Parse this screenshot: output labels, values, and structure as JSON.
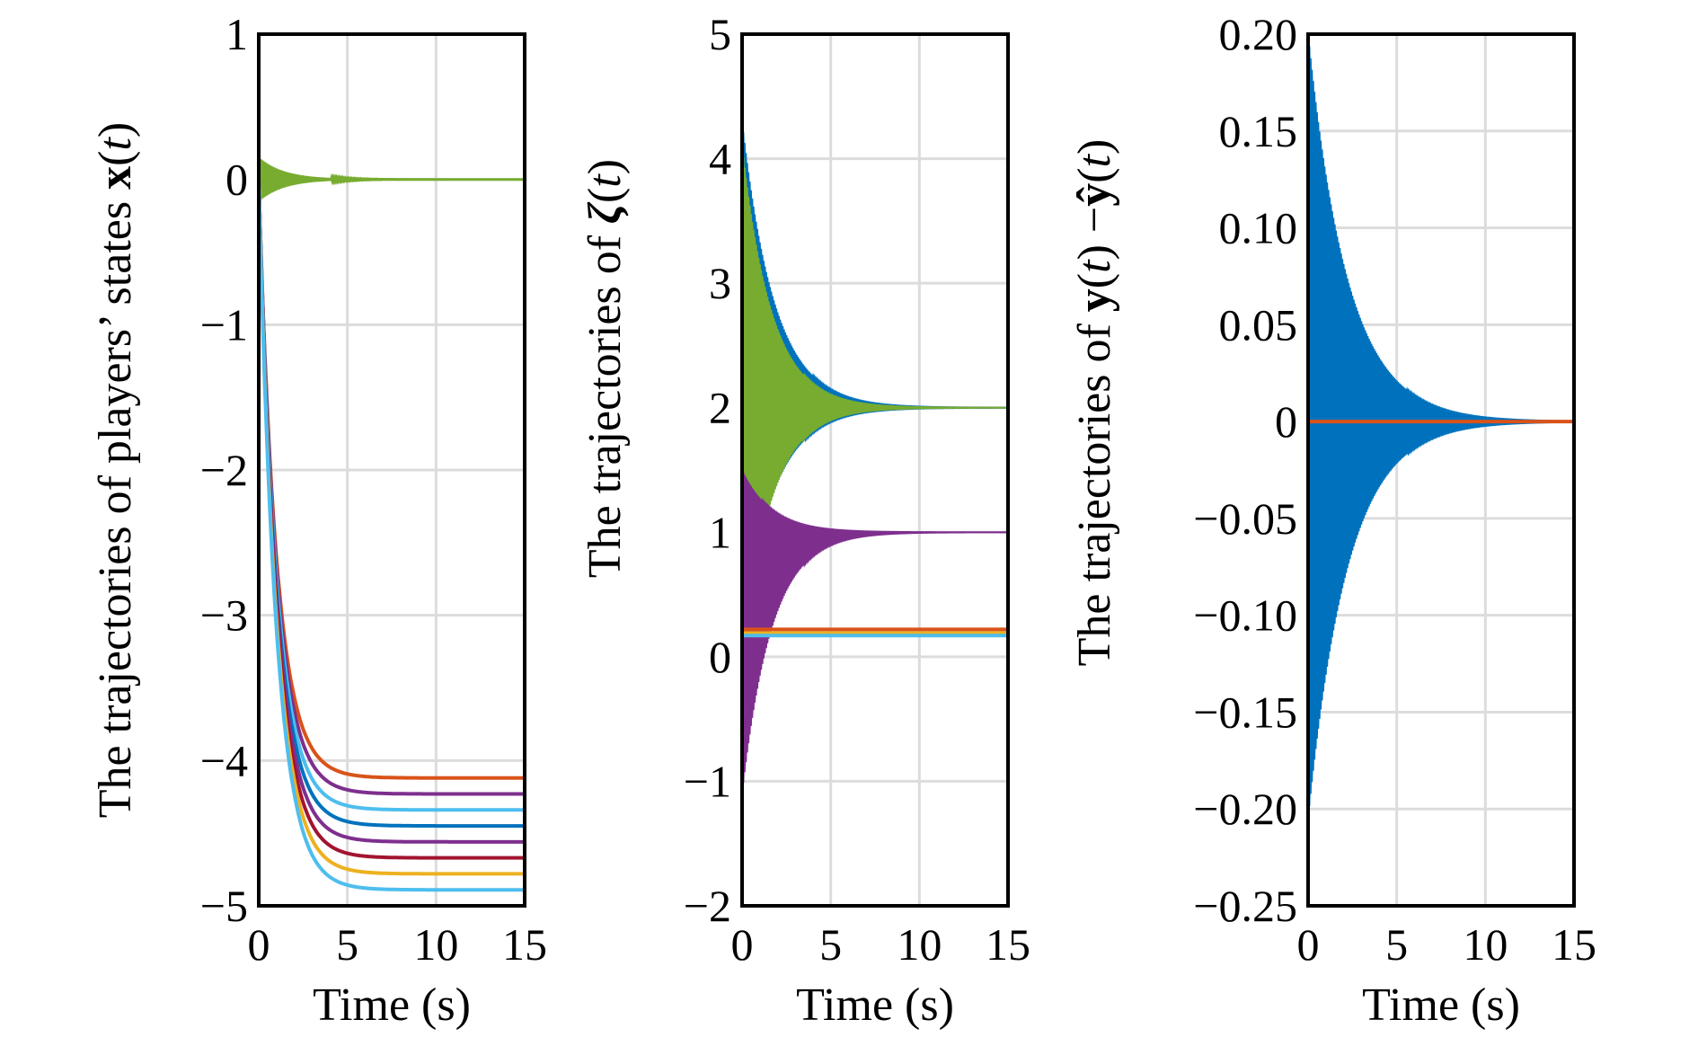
{
  "chart_data": [
    {
      "type": "line",
      "ylabel_parts": [
        "The trajectories of players’ states ",
        "x",
        "(",
        "t",
        ")"
      ],
      "xlabel": "Time (s)",
      "xlim": [
        0,
        15
      ],
      "ylim": [
        -5,
        1
      ],
      "xticks": [
        0,
        5,
        10,
        15
      ],
      "yticks": [
        1,
        0,
        -1,
        -2,
        -3,
        -4,
        -5
      ],
      "ytick_labels": [
        "1",
        "0",
        "−1",
        "−2",
        "−3",
        "−4",
        "−5"
      ],
      "xtick_labels": [
        "0",
        "5",
        "10",
        "15"
      ],
      "grid": true,
      "series": [
        {
          "color": "#77ac30",
          "final": 0.0,
          "oscillating": true,
          "amp": 0.15,
          "decay": 0.7
        },
        {
          "color": "#d95319",
          "final": -4.12,
          "tau": 1.0
        },
        {
          "color": "#7e2f8e",
          "final": -4.23,
          "tau": 1.0
        },
        {
          "color": "#4dbeee",
          "final": -4.34,
          "tau": 1.0
        },
        {
          "color": "#0072bd",
          "final": -4.45,
          "tau": 1.0
        },
        {
          "color": "#7e2f8e",
          "final": -4.56,
          "tau": 1.0
        },
        {
          "color": "#a2142f",
          "final": -4.67,
          "tau": 1.0
        },
        {
          "color": "#edb120",
          "final": -4.78,
          "tau": 1.0
        },
        {
          "color": "#4dbeee",
          "final": -4.89,
          "tau": 1.0
        }
      ]
    },
    {
      "type": "line",
      "ylabel_parts": [
        "The trajectories of ",
        "ζ",
        "(",
        "t",
        ")"
      ],
      "xlabel": "Time (s)",
      "xlim": [
        0,
        15
      ],
      "ylim": [
        -2,
        5
      ],
      "xticks": [
        0,
        5,
        10,
        15
      ],
      "yticks": [
        5,
        4,
        3,
        2,
        1,
        0,
        -1,
        -2
      ],
      "ytick_labels": [
        "5",
        "4",
        "3",
        "2",
        "1",
        "0",
        "−1",
        "−2"
      ],
      "xtick_labels": [
        "0",
        "5",
        "10",
        "15"
      ],
      "grid": true,
      "bands": [
        {
          "color": "#0072bd",
          "center": 2.0,
          "upper0": 4.3,
          "lower0": 0.2,
          "decay": 0.55
        },
        {
          "color": "#77ac30",
          "center": 2.0,
          "upper0": 4.1,
          "lower0": 0.0,
          "decay": 0.6
        },
        {
          "color": "#7e2f8e",
          "center": 1.0,
          "upper0": 1.5,
          "lower0": -1.1,
          "decay": 0.6
        }
      ],
      "series": [
        {
          "color": "#d95319",
          "final": 0.22
        },
        {
          "color": "#edb120",
          "final": 0.19
        },
        {
          "color": "#4dbeee",
          "final": 0.17
        }
      ]
    },
    {
      "type": "line",
      "ylabel_parts": [
        "The trajectories of ",
        "y",
        "(",
        "t",
        ") −",
        "ŷ",
        "(",
        "t",
        ")"
      ],
      "xlabel": "Time (s)",
      "xlim": [
        0,
        15
      ],
      "ylim": [
        -0.25,
        0.2
      ],
      "xticks": [
        0,
        5,
        10,
        15
      ],
      "yticks": [
        0.2,
        0.15,
        0.1,
        0.05,
        0,
        -0.05,
        -0.1,
        -0.15,
        -0.2,
        -0.25
      ],
      "ytick_labels": [
        "0.20",
        "0.15",
        "0.10",
        "0.05",
        "0",
        "−0.05",
        "−0.10",
        "−0.15",
        "−0.20",
        "−0.25"
      ],
      "xtick_labels": [
        "0",
        "5",
        "10",
        "15"
      ],
      "grid": true,
      "bands": [
        {
          "color": "#0072bd",
          "center": 0.0,
          "upper0": 0.2,
          "lower0": -0.205,
          "decay": 0.45
        }
      ],
      "series": [
        {
          "color": "#d95319",
          "final": 0.0
        }
      ]
    }
  ]
}
